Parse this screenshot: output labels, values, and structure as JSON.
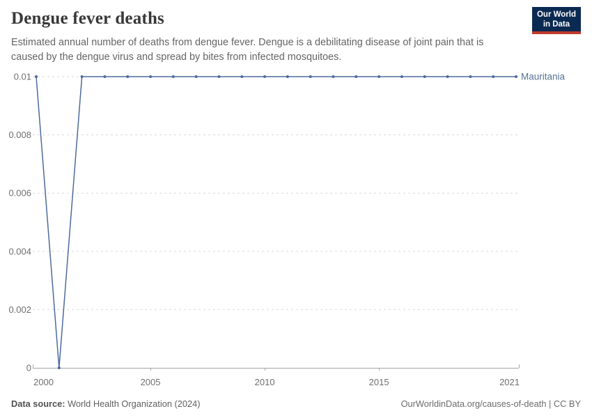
{
  "header": {
    "title": "Dengue fever deaths",
    "subtitle": "Estimated annual number of deaths from dengue fever. Dengue is a debilitating disease of joint pain that is caused by the dengue virus and spread by bites from infected mosquitoes.",
    "logo": {
      "line1": "Our World",
      "line2": "in Data",
      "bg_color": "#0B2A52",
      "stripe_color": "#C0392B"
    }
  },
  "chart_data": {
    "type": "line",
    "title": "Dengue fever deaths",
    "xlabel": "",
    "ylabel": "",
    "xlim": [
      2000,
      2021
    ],
    "ylim": [
      0,
      0.01
    ],
    "grid": "horizontal-dashed",
    "legend_position": "right-of-line",
    "x_ticks": [
      2000,
      2005,
      2010,
      2015,
      2021
    ],
    "y_ticks": [
      0,
      0.002,
      0.004,
      0.006,
      0.008,
      0.01
    ],
    "y_tick_labels": [
      "0",
      "0.002",
      "0.004",
      "0.006",
      "0.008",
      "0.01"
    ],
    "series": [
      {
        "name": "Mauritania",
        "color": "#4C6A9C",
        "label_color": "#577294",
        "x": [
          2000,
          2001,
          2002,
          2003,
          2004,
          2005,
          2006,
          2007,
          2008,
          2009,
          2010,
          2011,
          2012,
          2013,
          2014,
          2015,
          2016,
          2017,
          2018,
          2019,
          2020,
          2021
        ],
        "values": [
          0.01,
          0,
          0.01,
          0.01,
          0.01,
          0.01,
          0.01,
          0.01,
          0.01,
          0.01,
          0.01,
          0.01,
          0.01,
          0.01,
          0.01,
          0.01,
          0.01,
          0.01,
          0.01,
          0.01,
          0.01,
          0.01
        ]
      }
    ]
  },
  "footer": {
    "source_label": "Data source:",
    "source_value": " World Health Organization (2024)",
    "credit": "OurWorldinData.org/causes-of-death | CC BY"
  },
  "colors": {
    "title": "#383838",
    "subtitle": "#646464",
    "tick_label": "#6e6e6e",
    "gridline": "#dadada",
    "axis": "#a5a5a5"
  }
}
